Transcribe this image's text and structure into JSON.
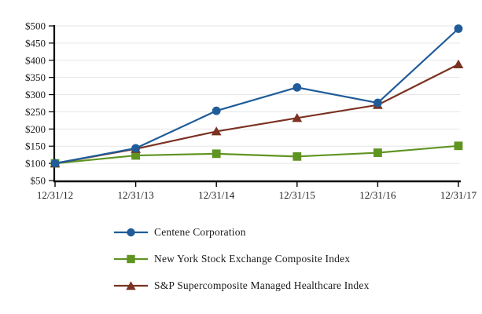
{
  "chart_data": {
    "type": "line",
    "title": "",
    "xlabel": "",
    "ylabel": "",
    "x": [
      "12/31/12",
      "12/31/13",
      "12/31/14",
      "12/31/15",
      "12/31/16",
      "12/31/17"
    ],
    "series": [
      {
        "name": "Centene Corporation",
        "marker": "circle",
        "color": "#1F5C99",
        "values": [
          100,
          144,
          253,
          321,
          276,
          492
        ]
      },
      {
        "name": "New York Stock Exchange Composite Index",
        "marker": "square",
        "color": "#5F9421",
        "values": [
          100,
          123,
          128,
          120,
          131,
          151
        ]
      },
      {
        "name": "S&P Supercomposite Managed Healthcare Index",
        "marker": "triangle",
        "color": "#7A3222",
        "values": [
          100,
          142,
          193,
          232,
          270,
          388
        ]
      }
    ],
    "ylim": [
      50,
      500
    ],
    "y_tick_step": 50,
    "y_tick_prefix": "$",
    "y_tick_labels": [
      "$50",
      "$100",
      "$150",
      "$200",
      "$250",
      "$300",
      "$350",
      "$400",
      "$450",
      "$500"
    ],
    "grid": true,
    "grid_color": "#E6E6E6",
    "axis_color": "#000000",
    "text_color": "#1a1a1a",
    "legend_position": "bottom-left"
  }
}
